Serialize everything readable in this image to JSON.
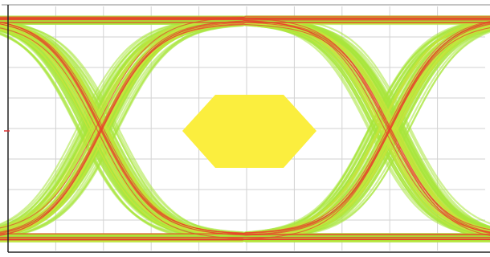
{
  "chart_data": {
    "type": "eye-diagram",
    "title": "",
    "xlabel": "",
    "ylabel": "",
    "grid": true,
    "x_divisions": 10,
    "y_divisions": 8,
    "colors": {
      "background": "#ffffff",
      "grid": "#d2d2d2",
      "trace": "#a8e63a",
      "trace_dense": "#c9e43a",
      "hot": "#e8402a",
      "mask": "#fbee3e",
      "frame": "#222222"
    },
    "mask": {
      "shape": "diamond",
      "color": "#fbee3e"
    }
  }
}
